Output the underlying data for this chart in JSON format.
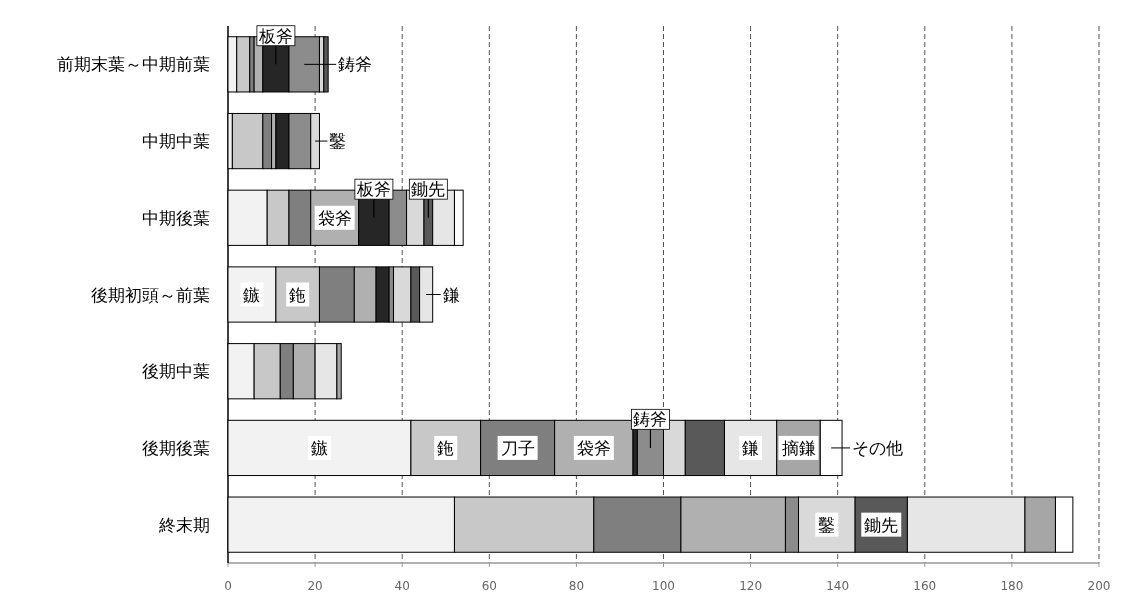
{
  "chart_data": {
    "type": "bar",
    "orientation": "horizontal",
    "stacked": true,
    "grid": "x",
    "categories": [
      "前期末葉～中期前葉",
      "中期中葉",
      "中期後葉",
      "後期初頭～前葉",
      "後期中葉",
      "後期後葉",
      "終末期"
    ],
    "xlim": [
      0,
      200
    ],
    "xticks": [
      0,
      20,
      40,
      60,
      80,
      100,
      120,
      140,
      160,
      180,
      200
    ],
    "series": [
      {
        "color": "#f2f2f2",
        "values": [
          2,
          1,
          9,
          11,
          6,
          42,
          52
        ]
      },
      {
        "color": "#c8c8c8",
        "values": [
          3,
          7,
          5,
          10,
          6,
          16,
          32
        ]
      },
      {
        "color": "#7f7f7f",
        "values": [
          1,
          2,
          5,
          8,
          3,
          17,
          20
        ]
      },
      {
        "color": "#b0b0b0",
        "values": [
          2,
          1,
          11,
          5,
          5,
          18,
          24
        ]
      },
      {
        "color": "#262626",
        "values": [
          6,
          3,
          7,
          3,
          0,
          1,
          0
        ]
      },
      {
        "color": "#8c8c8c",
        "values": [
          7,
          5,
          4,
          1,
          0,
          6,
          3
        ]
      },
      {
        "color": "#d9d9d9",
        "values": [
          1,
          2,
          4,
          4,
          0,
          5,
          13
        ]
      },
      {
        "color": "#595959",
        "values": [
          1,
          0,
          2,
          2,
          0,
          9,
          12
        ]
      },
      {
        "color": "#e6e6e6",
        "values": [
          0,
          0,
          5,
          3,
          5,
          12,
          27
        ]
      },
      {
        "color": "#a6a6a6",
        "values": [
          0,
          0,
          0,
          0,
          1,
          10,
          7
        ]
      },
      {
        "color": "#ffffff",
        "values": [
          0,
          0,
          2,
          0,
          0,
          5,
          4
        ]
      }
    ],
    "annotations": [
      {
        "text": "板斧",
        "x": 11,
        "y": "前期末葉～中期前葉"
      },
      {
        "text": "鋳斧",
        "x": 17.5,
        "y": "前期末葉～中期前葉"
      },
      {
        "text": "鑿",
        "x": 20,
        "y": "中期中葉"
      },
      {
        "text": "袋斧",
        "x": 24.5,
        "y": "中期後葉"
      },
      {
        "text": "板斧",
        "x": 33.5,
        "y": "中期後葉"
      },
      {
        "text": "鋤先",
        "x": 46,
        "y": "中期後葉"
      },
      {
        "text": "鏃",
        "x": 5.5,
        "y": "後期初頭～前葉"
      },
      {
        "text": "鉇",
        "x": 16,
        "y": "後期初頭～前葉"
      },
      {
        "text": "鎌",
        "x": 45.5,
        "y": "後期初頭～前葉"
      },
      {
        "text": "鏃",
        "x": 21,
        "y": "後期後葉"
      },
      {
        "text": "鉇",
        "x": 50,
        "y": "後期後葉"
      },
      {
        "text": "刀子",
        "x": 66.5,
        "y": "後期後葉"
      },
      {
        "text": "袋斧",
        "x": 84,
        "y": "後期後葉"
      },
      {
        "text": "鋳斧",
        "x": 97,
        "y": "後期後葉"
      },
      {
        "text": "鎌",
        "x": 120,
        "y": "後期後葉"
      },
      {
        "text": "摘鎌",
        "x": 131,
        "y": "後期後葉"
      },
      {
        "text": "その他",
        "x": 138.5,
        "y": "後期後葉"
      },
      {
        "text": "鑿",
        "x": 137.5,
        "y": "終末期"
      },
      {
        "text": "鋤先",
        "x": 150,
        "y": "終末期"
      }
    ]
  }
}
